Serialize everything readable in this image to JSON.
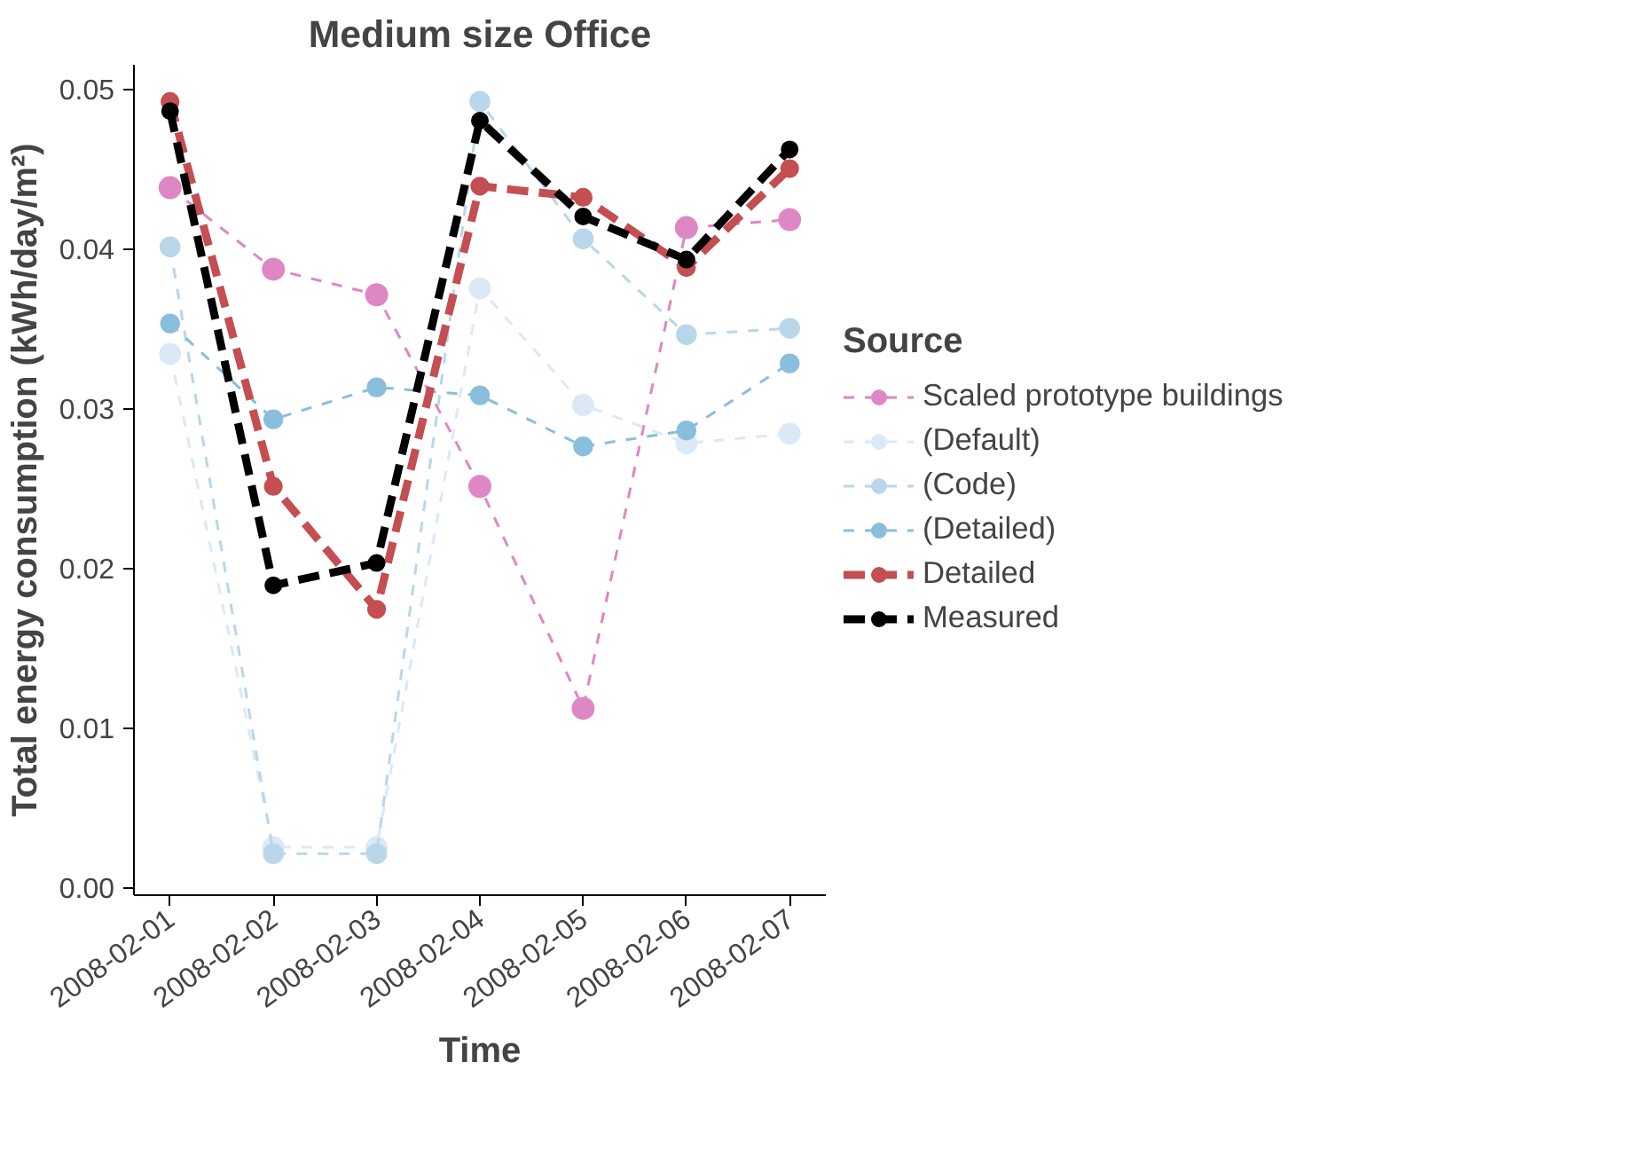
{
  "chart_data": {
    "type": "line",
    "title": "Medium size Office",
    "xlabel": "Time",
    "ylabel": "Total energy consumption (kWh/day/m²)",
    "legend_title": "Source",
    "legend": "right",
    "grid": false,
    "marker": "circle",
    "line_style": "dashed",
    "categories": [
      "2008-02-01",
      "2008-02-02",
      "2008-02-03",
      "2008-02-04",
      "2008-02-05",
      "2008-02-06",
      "2008-02-07"
    ],
    "ylim": [
      -0.0005,
      0.0515
    ],
    "yticks": [
      {
        "value": 0,
        "label": "0.00"
      },
      0.01,
      0.02,
      0.03,
      0.04,
      0.05
    ],
    "series": [
      {
        "name": "Scaled prototype buildings",
        "color": "#dd88c4",
        "values": [
          0.0438,
          0.0387,
          0.0371,
          0.0251,
          0.0112,
          0.0413,
          0.0418
        ]
      },
      {
        "name": "(Default)",
        "color": "#dbe9f6",
        "values": [
          0.0334,
          0.0025,
          0.0025,
          0.0375,
          0.0302,
          0.0278,
          0.0284
        ]
      },
      {
        "name": "(Code)",
        "color": "#bad6ea",
        "values": [
          0.0401,
          0.0021,
          0.0021,
          0.0492,
          0.0406,
          0.0346,
          0.035
        ]
      },
      {
        "name": "(Detailed)",
        "color": "#89bedc",
        "values": [
          0.0353,
          0.0293,
          0.0313,
          0.0308,
          0.0276,
          0.0286,
          0.0328
        ]
      },
      {
        "name": "Detailed",
        "color": "#c44e52",
        "values": [
          0.0492,
          0.0251,
          0.0174,
          0.0439,
          0.0432,
          0.0388,
          0.045
        ]
      },
      {
        "name": "Measured",
        "color": "#000000",
        "values": [
          0.0486,
          0.0189,
          0.0203,
          0.048,
          0.042,
          0.0393,
          0.0462
        ]
      }
    ]
  }
}
